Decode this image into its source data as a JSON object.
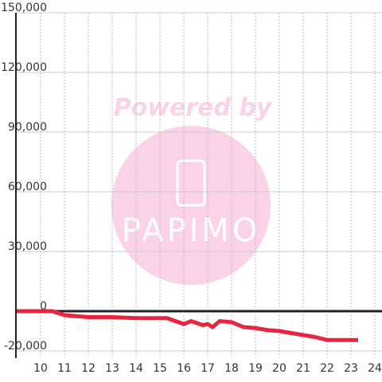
{
  "chart_data": {
    "type": "line",
    "watermark": {
      "line1": "Powered by",
      "line2": "PAPIMO"
    },
    "x": [
      9,
      10.5,
      11,
      11.5,
      12,
      13,
      14,
      15,
      15.3,
      16,
      16.3,
      16.8,
      17,
      17.2,
      17.5,
      18,
      18.5,
      19,
      19.5,
      20,
      20.5,
      21,
      21.5,
      22,
      23.3
    ],
    "series": [
      {
        "color": "#e8253f",
        "values": [
          0,
          0,
          -2000,
          -2500,
          -3000,
          -3000,
          -3500,
          -3500,
          -3500,
          -6500,
          -5000,
          -7000,
          -6500,
          -8000,
          -5000,
          -5500,
          -8000,
          -8500,
          -9500,
          -10000,
          -11000,
          -12000,
          -13000,
          -14500,
          -14500
        ]
      }
    ],
    "xlim": [
      9,
      24.3
    ],
    "xticks": [
      10,
      11,
      12,
      13,
      14,
      15,
      16,
      17,
      18,
      19,
      20,
      21,
      22,
      23,
      24
    ],
    "ylim": [
      -20000,
      150000
    ],
    "yticks": [
      {
        "value": -20000,
        "label": "-20,000"
      },
      0,
      {
        "value": 30000,
        "label": "30,000"
      },
      {
        "value": 60000,
        "label": "60,000"
      },
      {
        "value": 90000,
        "label": "90,000"
      },
      {
        "value": 120000,
        "label": "120,000"
      },
      {
        "value": 150000,
        "label": "150,000"
      }
    ],
    "grid": true
  }
}
